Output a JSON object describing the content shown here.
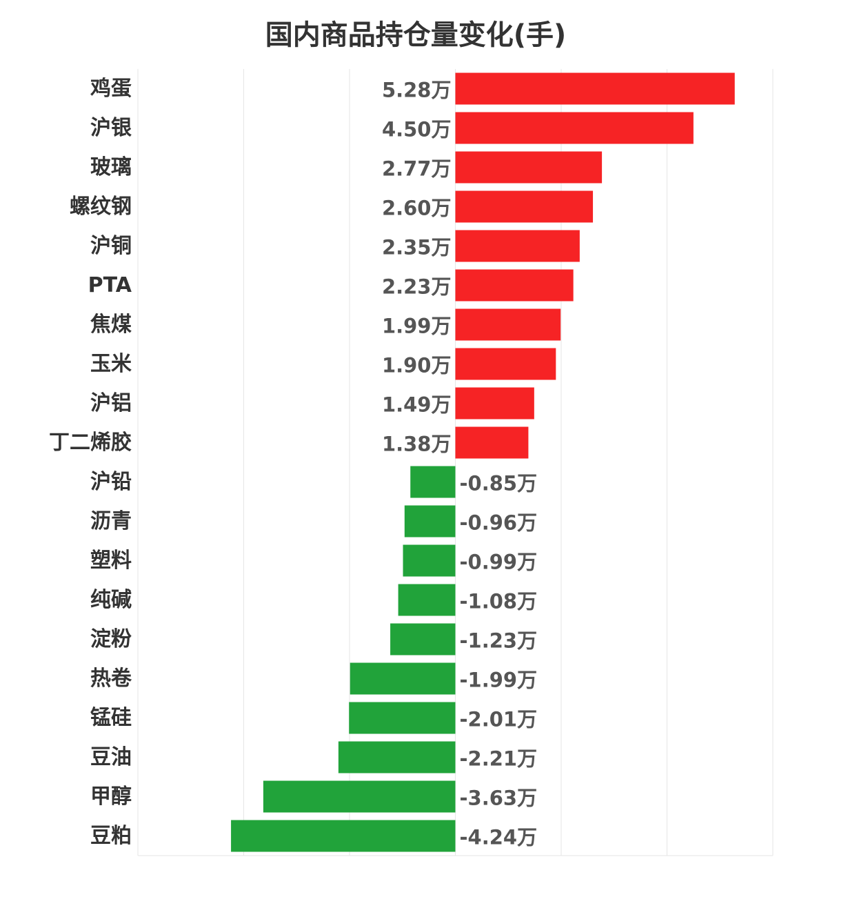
{
  "chart_data": {
    "type": "bar",
    "orientation": "horizontal",
    "title": "国内商品持仓量变化(手)",
    "xlabel": "",
    "ylabel": "",
    "unit_suffix": "万",
    "xlim": [
      -6,
      6
    ],
    "grid": true,
    "categories": [
      "鸡蛋",
      "沪银",
      "玻璃",
      "螺纹钢",
      "沪铜",
      "PTA",
      "焦煤",
      "玉米",
      "沪铝",
      "丁二烯胶",
      "沪铅",
      "沥青",
      "塑料",
      "纯碱",
      "淀粉",
      "热卷",
      "锰硅",
      "豆油",
      "甲醇",
      "豆粕"
    ],
    "values": [
      5.28,
      4.5,
      2.77,
      2.6,
      2.35,
      2.23,
      1.99,
      1.9,
      1.49,
      1.38,
      -0.85,
      -0.96,
      -0.99,
      -1.08,
      -1.23,
      -1.99,
      -2.01,
      -2.21,
      -3.63,
      -4.24
    ],
    "value_labels": [
      "5.28万",
      "4.50万",
      "2.77万",
      "2.60万",
      "2.35万",
      "2.23万",
      "1.99万",
      "1.90万",
      "1.49万",
      "1.38万",
      "-0.85万",
      "-0.96万",
      "-0.99万",
      "-1.08万",
      "-1.23万",
      "-1.99万",
      "-2.01万",
      "-2.21万",
      "-3.63万",
      "-4.24万"
    ],
    "colors": {
      "positive": "#f62325",
      "negative": "#21a33a",
      "grid": "#e6e6e6"
    }
  }
}
